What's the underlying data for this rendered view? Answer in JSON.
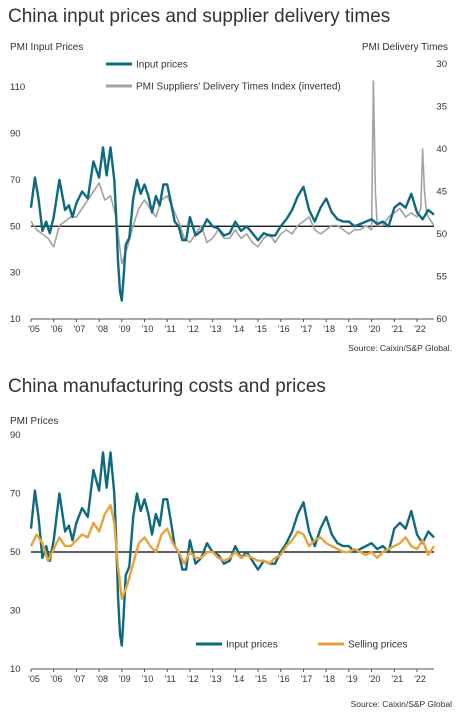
{
  "charts": [
    {
      "title": "China input prices and supplier delivery times",
      "left_axis_label": "PMI Input Prices",
      "right_axis_label": "PMI Delivery Times",
      "source": "Source: Caixin/S&P Global."
    },
    {
      "title": "China manufacturing costs and prices",
      "left_axis_label": "PMI Prices",
      "source": "Source: Caixin/S&P Global"
    }
  ],
  "chart_data": [
    {
      "type": "line",
      "title": "China input prices and supplier delivery times",
      "ylabel": "PMI Input Prices",
      "y2label": "PMI Delivery Times",
      "ylim": [
        10,
        120
      ],
      "y2lim": [
        60,
        30
      ],
      "y2_inverted": true,
      "reference_line": 50,
      "xlim": [
        2005.0,
        2022.75
      ],
      "x_ticks": [
        2005,
        2006,
        2007,
        2008,
        2009,
        2010,
        2011,
        2012,
        2013,
        2014,
        2015,
        2016,
        2017,
        2018,
        2019,
        2020,
        2021,
        2022
      ],
      "x_tick_labels": [
        "'05",
        "'06",
        "'07",
        "'08",
        "'09",
        "'10",
        "'11",
        "'12",
        "'13",
        "'14",
        "'15",
        "'16",
        "'17",
        "'18",
        "'19",
        "'20",
        "'21",
        "'22"
      ],
      "y_ticks": [
        10,
        30,
        50,
        70,
        90,
        110
      ],
      "y2_ticks": [
        30,
        35,
        40,
        45,
        50,
        55,
        60
      ],
      "legend": "top-center",
      "series": [
        {
          "name": "Input prices",
          "axis": "left",
          "color": "#0e6a7c",
          "x": [
            2005.0,
            2005.17,
            2005.33,
            2005.5,
            2005.67,
            2005.83,
            2006.0,
            2006.25,
            2006.5,
            2006.67,
            2006.83,
            2007.0,
            2007.25,
            2007.5,
            2007.75,
            2008.0,
            2008.17,
            2008.33,
            2008.5,
            2008.67,
            2008.75,
            2008.83,
            2008.92,
            2009.0,
            2009.08,
            2009.17,
            2009.33,
            2009.5,
            2009.67,
            2009.83,
            2010.0,
            2010.17,
            2010.33,
            2010.5,
            2010.67,
            2010.83,
            2011.0,
            2011.17,
            2011.33,
            2011.5,
            2011.67,
            2011.83,
            2012.0,
            2012.25,
            2012.5,
            2012.75,
            2013.0,
            2013.25,
            2013.5,
            2013.75,
            2014.0,
            2014.25,
            2014.5,
            2014.75,
            2015.0,
            2015.25,
            2015.5,
            2015.75,
            2016.0,
            2016.25,
            2016.5,
            2016.75,
            2017.0,
            2017.25,
            2017.5,
            2017.75,
            2018.0,
            2018.25,
            2018.5,
            2018.75,
            2019.0,
            2019.25,
            2019.5,
            2019.75,
            2020.0,
            2020.25,
            2020.5,
            2020.75,
            2021.0,
            2021.25,
            2021.5,
            2021.75,
            2022.0,
            2022.25,
            2022.5,
            2022.75
          ],
          "values": [
            58,
            71,
            62,
            48,
            52,
            47,
            54,
            70,
            57,
            59,
            54,
            60,
            65,
            62,
            78,
            71,
            84,
            72,
            84,
            70,
            55,
            35,
            22,
            18,
            28,
            42,
            45,
            62,
            70,
            64,
            68,
            63,
            56,
            63,
            59,
            68,
            68,
            60,
            52,
            50,
            44,
            44,
            54,
            46,
            48,
            53,
            50,
            49,
            46,
            47,
            52,
            48,
            50,
            47,
            44,
            47,
            46,
            46,
            50,
            53,
            57,
            63,
            67,
            57,
            52,
            58,
            62,
            56,
            53,
            52,
            52,
            50,
            51,
            52,
            53,
            51,
            52,
            50,
            58,
            60,
            58,
            64,
            56,
            53,
            57,
            55
          ]
        },
        {
          "name": "PMI Suppliers' Delivery Times Index (inverted)",
          "axis": "right",
          "color": "#a3a3a3",
          "x": [
            2005.0,
            2005.25,
            2005.5,
            2005.75,
            2006.0,
            2006.25,
            2006.5,
            2006.75,
            2007.0,
            2007.25,
            2007.5,
            2007.75,
            2008.0,
            2008.25,
            2008.5,
            2008.75,
            2009.0,
            2009.25,
            2009.5,
            2009.75,
            2010.0,
            2010.25,
            2010.5,
            2010.75,
            2011.0,
            2011.25,
            2011.5,
            2011.75,
            2012.0,
            2012.25,
            2012.5,
            2012.75,
            2013.0,
            2013.25,
            2013.5,
            2013.75,
            2014.0,
            2014.25,
            2014.5,
            2014.75,
            2015.0,
            2015.25,
            2015.5,
            2015.75,
            2016.0,
            2016.25,
            2016.5,
            2016.75,
            2017.0,
            2017.25,
            2017.5,
            2017.75,
            2018.0,
            2018.25,
            2018.5,
            2018.75,
            2019.0,
            2019.25,
            2019.5,
            2019.75,
            2020.0,
            2020.08,
            2020.17,
            2020.25,
            2020.5,
            2020.75,
            2021.0,
            2021.25,
            2021.5,
            2021.75,
            2022.0,
            2022.17,
            2022.25,
            2022.33,
            2022.42,
            2022.5,
            2022.75
          ],
          "values": [
            48.5,
            49.5,
            50.0,
            50.5,
            51.5,
            49.0,
            48.5,
            48.0,
            48.0,
            47.0,
            46.0,
            45.0,
            44.0,
            46.0,
            45.5,
            48.0,
            53.5,
            51.5,
            49.0,
            47.0,
            46.0,
            47.0,
            48.0,
            46.0,
            45.5,
            47.0,
            48.5,
            50.5,
            51.0,
            50.0,
            49.0,
            51.0,
            50.5,
            49.5,
            50.5,
            50.5,
            49.5,
            50.5,
            50.0,
            51.0,
            51.5,
            50.5,
            50.0,
            51.0,
            50.0,
            49.5,
            50.0,
            49.0,
            48.5,
            48.0,
            49.5,
            50.0,
            49.5,
            49.0,
            49.0,
            49.5,
            50.0,
            49.5,
            49.5,
            49.0,
            49.5,
            32.0,
            45.0,
            49.0,
            49.0,
            48.0,
            47.5,
            47.0,
            48.0,
            47.5,
            48.0,
            47.0,
            40.0,
            45.0,
            47.5,
            48.0,
            49.0
          ]
        }
      ]
    },
    {
      "type": "line",
      "title": "China manufacturing costs and prices",
      "ylabel": "PMI Prices",
      "ylim": [
        10,
        90
      ],
      "reference_line": 50,
      "xlim": [
        2005.0,
        2022.75
      ],
      "x_ticks": [
        2005,
        2006,
        2007,
        2008,
        2009,
        2010,
        2011,
        2012,
        2013,
        2014,
        2015,
        2016,
        2017,
        2018,
        2019,
        2020,
        2021,
        2022
      ],
      "x_tick_labels": [
        "'05",
        "'06",
        "'07",
        "'08",
        "'09",
        "'10",
        "'11",
        "'12",
        "'13",
        "'14",
        "'15",
        "'16",
        "'17",
        "'18",
        "'19",
        "'20",
        "'21",
        "'22"
      ],
      "y_ticks": [
        10,
        30,
        50,
        70,
        90
      ],
      "legend": "bottom",
      "series": [
        {
          "name": "Input prices",
          "color": "#0e6a7c",
          "x": [
            2005.0,
            2005.17,
            2005.33,
            2005.5,
            2005.67,
            2005.83,
            2006.0,
            2006.25,
            2006.5,
            2006.67,
            2006.83,
            2007.0,
            2007.25,
            2007.5,
            2007.75,
            2008.0,
            2008.17,
            2008.33,
            2008.5,
            2008.67,
            2008.75,
            2008.83,
            2008.92,
            2009.0,
            2009.08,
            2009.17,
            2009.33,
            2009.5,
            2009.67,
            2009.83,
            2010.0,
            2010.17,
            2010.33,
            2010.5,
            2010.67,
            2010.83,
            2011.0,
            2011.17,
            2011.33,
            2011.5,
            2011.67,
            2011.83,
            2012.0,
            2012.25,
            2012.5,
            2012.75,
            2013.0,
            2013.25,
            2013.5,
            2013.75,
            2014.0,
            2014.25,
            2014.5,
            2014.75,
            2015.0,
            2015.25,
            2015.5,
            2015.75,
            2016.0,
            2016.25,
            2016.5,
            2016.75,
            2017.0,
            2017.25,
            2017.5,
            2017.75,
            2018.0,
            2018.25,
            2018.5,
            2018.75,
            2019.0,
            2019.25,
            2019.5,
            2019.75,
            2020.0,
            2020.25,
            2020.5,
            2020.75,
            2021.0,
            2021.25,
            2021.5,
            2021.75,
            2022.0,
            2022.25,
            2022.5,
            2022.75
          ],
          "values": [
            58,
            71,
            62,
            48,
            52,
            47,
            54,
            70,
            57,
            59,
            54,
            60,
            65,
            62,
            78,
            71,
            84,
            72,
            84,
            70,
            55,
            35,
            22,
            18,
            28,
            42,
            45,
            62,
            70,
            64,
            68,
            63,
            56,
            63,
            59,
            68,
            68,
            60,
            52,
            50,
            44,
            44,
            54,
            46,
            48,
            53,
            50,
            49,
            46,
            47,
            52,
            48,
            50,
            47,
            44,
            47,
            46,
            46,
            50,
            53,
            57,
            63,
            67,
            57,
            52,
            58,
            62,
            56,
            53,
            52,
            52,
            50,
            51,
            52,
            53,
            51,
            52,
            50,
            58,
            60,
            58,
            64,
            56,
            53,
            57,
            55
          ]
        },
        {
          "name": "Selling prices",
          "color": "#e8a33d",
          "x": [
            2005.0,
            2005.25,
            2005.5,
            2005.75,
            2006.0,
            2006.25,
            2006.5,
            2006.75,
            2007.0,
            2007.25,
            2007.5,
            2007.75,
            2008.0,
            2008.25,
            2008.5,
            2008.67,
            2008.83,
            2009.0,
            2009.25,
            2009.5,
            2009.75,
            2010.0,
            2010.25,
            2010.5,
            2010.75,
            2011.0,
            2011.25,
            2011.5,
            2011.75,
            2012.0,
            2012.25,
            2012.5,
            2012.75,
            2013.0,
            2013.25,
            2013.5,
            2013.75,
            2014.0,
            2014.25,
            2014.5,
            2014.75,
            2015.0,
            2015.25,
            2015.5,
            2015.75,
            2016.0,
            2016.25,
            2016.5,
            2016.75,
            2017.0,
            2017.25,
            2017.5,
            2017.75,
            2018.0,
            2018.25,
            2018.5,
            2018.75,
            2019.0,
            2019.25,
            2019.5,
            2019.75,
            2020.0,
            2020.25,
            2020.5,
            2020.75,
            2021.0,
            2021.25,
            2021.5,
            2021.75,
            2022.0,
            2022.25,
            2022.5,
            2022.75
          ],
          "values": [
            52,
            56,
            53,
            47,
            51,
            55,
            52,
            52,
            54,
            56,
            55,
            60,
            57,
            63,
            66,
            60,
            45,
            34,
            39,
            46,
            53,
            55,
            52,
            50,
            56,
            58,
            53,
            50,
            46,
            50,
            48,
            48,
            50,
            50,
            48,
            47,
            48,
            50,
            48,
            49,
            48,
            47,
            47,
            46,
            48,
            49,
            52,
            54,
            57,
            56,
            52,
            54,
            55,
            53,
            52,
            51,
            50,
            50,
            51,
            50,
            49,
            50,
            48,
            50,
            51,
            52,
            53,
            55,
            52,
            51,
            54,
            49,
            52
          ]
        }
      ]
    }
  ]
}
